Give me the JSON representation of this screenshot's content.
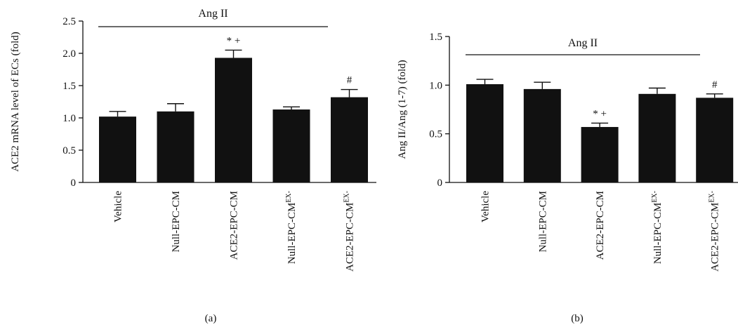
{
  "chart_data": [
    {
      "type": "bar",
      "panel_label": "(a)",
      "ylabel": "ACE2 mRNA level of ECs (fold)",
      "ylim": [
        0,
        2.5
      ],
      "yticks": [
        "0",
        "0.5",
        "1.0",
        "1.5",
        "2.0",
        "2.5"
      ],
      "ytick_values": [
        0,
        0.5,
        1.0,
        1.5,
        2.0,
        2.5
      ],
      "categories": [
        "Vehicle",
        "Null-EPC-CM",
        "ACE2-EPC-CM",
        "Null-EPC-CM",
        "ACE2-EPC-CM"
      ],
      "category_superscripts": [
        "",
        "",
        "",
        "EX-",
        "EX-"
      ],
      "values": [
        1.02,
        1.1,
        1.93,
        1.13,
        1.32
      ],
      "errors": [
        0.08,
        0.12,
        0.12,
        0.04,
        0.12
      ],
      "annotations": [
        "",
        "",
        "* +",
        "",
        "#"
      ],
      "group_label": "Ang II",
      "color": "#111111"
    },
    {
      "type": "bar",
      "panel_label": "(b)",
      "ylabel": "Ang II/Ang (1-7) (fold)",
      "ylim": [
        0,
        1.5
      ],
      "yticks": [
        "0",
        "0.5",
        "1.0",
        "1.5"
      ],
      "ytick_values": [
        0,
        0.5,
        1.0,
        1.5
      ],
      "categories": [
        "Vehicle",
        "Null-EPC-CM",
        "ACE2-EPC-CM",
        "Null-EPC-CM",
        "ACE2-EPC-CM"
      ],
      "category_superscripts": [
        "",
        "",
        "",
        "EX-",
        "EX-"
      ],
      "values": [
        1.01,
        0.96,
        0.57,
        0.91,
        0.87
      ],
      "errors": [
        0.05,
        0.07,
        0.04,
        0.06,
        0.04
      ],
      "annotations": [
        "",
        "",
        "* +",
        "",
        "#"
      ],
      "group_label": "Ang II",
      "color": "#111111"
    }
  ]
}
